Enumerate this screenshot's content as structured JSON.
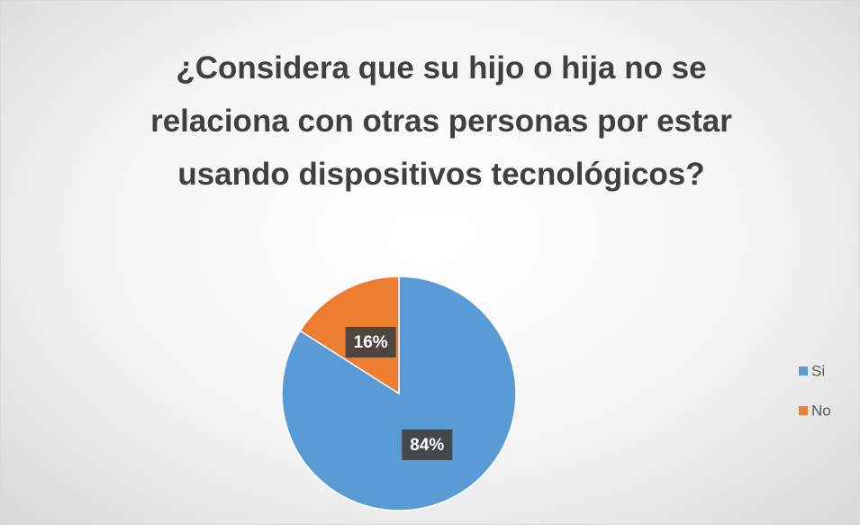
{
  "chart_data": {
    "type": "pie",
    "title": "¿Considera que su hijo o hija no se relaciona con otras personas por estar usando dispositivos tecnológicos?",
    "categories": [
      "Si",
      "No"
    ],
    "values": [
      84,
      16
    ],
    "value_labels": [
      "84%",
      "16%"
    ],
    "colors": [
      "#5b9bd5",
      "#ed7d31"
    ],
    "legend": "right"
  }
}
